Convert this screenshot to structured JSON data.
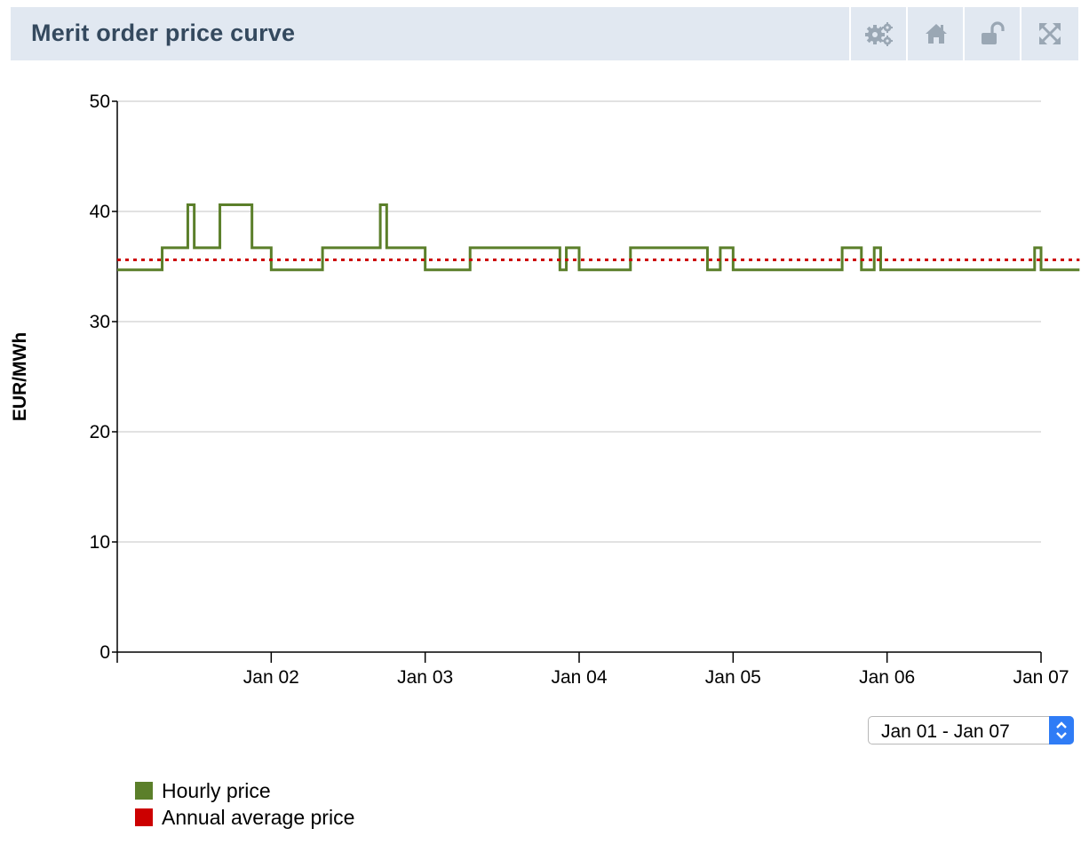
{
  "header": {
    "title": "Merit order price curve",
    "tools": [
      {
        "name": "settings-gears-icon"
      },
      {
        "name": "home-icon"
      },
      {
        "name": "unlock-icon"
      },
      {
        "name": "fullscreen-icon"
      }
    ]
  },
  "colors": {
    "header_bg": "#e1e8f1",
    "hourly": "#5b7f2a",
    "average": "#cc0000",
    "grid": "#d9d9d9"
  },
  "chart_data": {
    "type": "line",
    "title": "Merit order price curve",
    "xlabel": "",
    "ylabel": "EUR/MWh",
    "ylim": [
      0,
      50
    ],
    "yticks": [
      0,
      10,
      20,
      30,
      40,
      50
    ],
    "xlim": [
      "Jan 01 00:00",
      "Jan 07 00:00"
    ],
    "xticks": [
      "Jan 02",
      "Jan 03",
      "Jan 04",
      "Jan 05",
      "Jan 06",
      "Jan 07"
    ],
    "grid": true,
    "series": [
      {
        "name": "Hourly price",
        "color": "#5b7f2a",
        "style": "step",
        "x": [
          "Jan 01 00:00",
          "Jan 01 07:00",
          "Jan 01 11:00",
          "Jan 01 12:00",
          "Jan 01 16:00",
          "Jan 01 21:00",
          "Jan 02 00:00",
          "Jan 02 08:00",
          "Jan 02 17:00",
          "Jan 02 18:00",
          "Jan 03 00:00",
          "Jan 03 07:00",
          "Jan 03 21:00",
          "Jan 03 22:00",
          "Jan 04 00:00",
          "Jan 04 08:00",
          "Jan 04 20:00",
          "Jan 04 22:00",
          "Jan 05 00:00",
          "Jan 05 17:00",
          "Jan 05 20:00",
          "Jan 05 22:00",
          "Jan 05 23:00",
          "Jan 06 23:00",
          "Jan 07 00:00",
          "Jan 07 06:00"
        ],
        "values": [
          34.7,
          36.7,
          40.6,
          36.7,
          40.6,
          36.7,
          34.7,
          36.7,
          40.6,
          36.7,
          34.7,
          36.7,
          34.7,
          36.7,
          34.7,
          36.7,
          34.7,
          36.7,
          34.7,
          36.7,
          34.7,
          36.7,
          34.7,
          36.7,
          34.7,
          34.7
        ]
      },
      {
        "name": "Annual average price",
        "color": "#cc0000",
        "style": "dotted",
        "x": [
          "Jan 01 00:00",
          "Jan 07 06:00"
        ],
        "values": [
          35.6,
          35.6
        ]
      }
    ],
    "legend": [
      {
        "label": "Hourly price",
        "color": "#5b7f2a"
      },
      {
        "label": "Annual average price",
        "color": "#cc0000"
      }
    ],
    "legend_position": "bottom-left"
  },
  "range_selector": {
    "value": "Jan 01 - Jan 07"
  }
}
